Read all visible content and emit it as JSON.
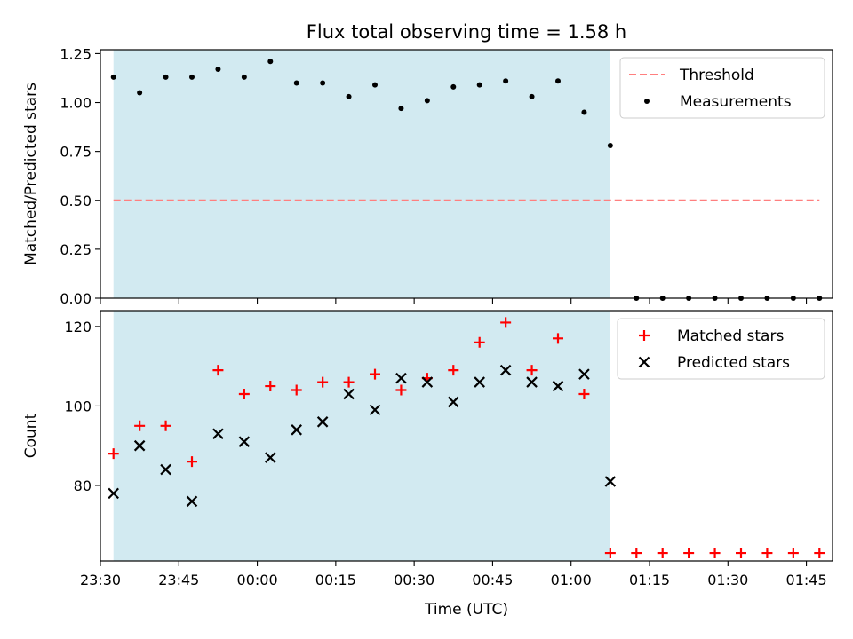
{
  "title": "Flux total observing time = 1.58 h",
  "colors": {
    "shade": "#add8e6",
    "threshold": "#ff7f7f",
    "measurement": "#000000",
    "matched": "#ff0000",
    "predicted": "#000000"
  },
  "chart_data": [
    {
      "type": "scatter",
      "ylabel": "Matched/Predicted stars",
      "xlim": [
        "23:30",
        "01:50"
      ],
      "ylim": [
        0,
        1.27
      ],
      "yticks": [
        "0.00",
        "0.25",
        "0.50",
        "0.75",
        "1.00",
        "1.25"
      ],
      "shaded_span": [
        "23:32:30",
        "01:07:30"
      ],
      "legend_position": "top-right",
      "series": [
        {
          "name": "Threshold",
          "kind": "dashed-line",
          "x": [
            "23:32:30",
            "01:47:30"
          ],
          "y": [
            0.5,
            0.5
          ]
        },
        {
          "name": "Measurements",
          "kind": "points",
          "x": [
            "23:32:30",
            "23:37:30",
            "23:42:30",
            "23:47:30",
            "23:52:30",
            "23:57:30",
            "00:02:30",
            "00:07:30",
            "00:12:30",
            "00:17:30",
            "00:22:30",
            "00:27:30",
            "00:32:30",
            "00:37:30",
            "00:42:30",
            "00:47:30",
            "00:52:30",
            "00:57:30",
            "01:02:30",
            "01:07:30",
            "01:12:30",
            "01:17:30",
            "01:22:30",
            "01:27:30",
            "01:32:30",
            "01:37:30",
            "01:42:30",
            "01:47:30"
          ],
          "y": [
            1.13,
            1.05,
            1.13,
            1.13,
            1.17,
            1.13,
            1.21,
            1.1,
            1.1,
            1.03,
            1.09,
            0.97,
            1.01,
            1.08,
            1.09,
            1.11,
            1.03,
            1.11,
            0.95,
            0.78,
            0,
            0,
            0,
            0,
            0,
            0,
            0,
            0
          ]
        }
      ]
    },
    {
      "type": "scatter",
      "ylabel": "Count",
      "xlabel": "Time (UTC)",
      "xlim": [
        "23:30",
        "01:50"
      ],
      "ylim": [
        61,
        124
      ],
      "yticks": [
        "80",
        "100",
        "120"
      ],
      "xticks": [
        "23:30",
        "23:45",
        "00:00",
        "00:15",
        "00:30",
        "00:45",
        "01:00",
        "01:15",
        "01:30",
        "01:45"
      ],
      "shaded_span": [
        "23:32:30",
        "01:07:30"
      ],
      "legend_position": "top-right",
      "series": [
        {
          "name": "Matched stars",
          "kind": "plus",
          "x": [
            "23:32:30",
            "23:37:30",
            "23:42:30",
            "23:47:30",
            "23:52:30",
            "23:57:30",
            "00:02:30",
            "00:07:30",
            "00:12:30",
            "00:17:30",
            "00:22:30",
            "00:27:30",
            "00:32:30",
            "00:37:30",
            "00:42:30",
            "00:47:30",
            "00:52:30",
            "00:57:30",
            "01:02:30",
            "01:07:30",
            "01:12:30",
            "01:17:30",
            "01:22:30",
            "01:27:30",
            "01:32:30",
            "01:37:30",
            "01:42:30",
            "01:47:30"
          ],
          "y": [
            88,
            95,
            95,
            86,
            109,
            103,
            105,
            104,
            106,
            106,
            108,
            104,
            107,
            109,
            116,
            121,
            109,
            117,
            103,
            63,
            63,
            63,
            63,
            63,
            63,
            63,
            63,
            63
          ]
        },
        {
          "name": "Predicted stars",
          "kind": "x",
          "x": [
            "23:32:30",
            "23:37:30",
            "23:42:30",
            "23:47:30",
            "23:52:30",
            "23:57:30",
            "00:02:30",
            "00:07:30",
            "00:12:30",
            "00:17:30",
            "00:22:30",
            "00:27:30",
            "00:32:30",
            "00:37:30",
            "00:42:30",
            "00:47:30",
            "00:52:30",
            "00:57:30",
            "01:02:30",
            "01:07:30"
          ],
          "y": [
            78,
            90,
            84,
            76,
            93,
            91,
            87,
            94,
            96,
            103,
            99,
            107,
            106,
            101,
            106,
            109,
            106,
            105,
            108,
            81
          ]
        }
      ]
    }
  ]
}
